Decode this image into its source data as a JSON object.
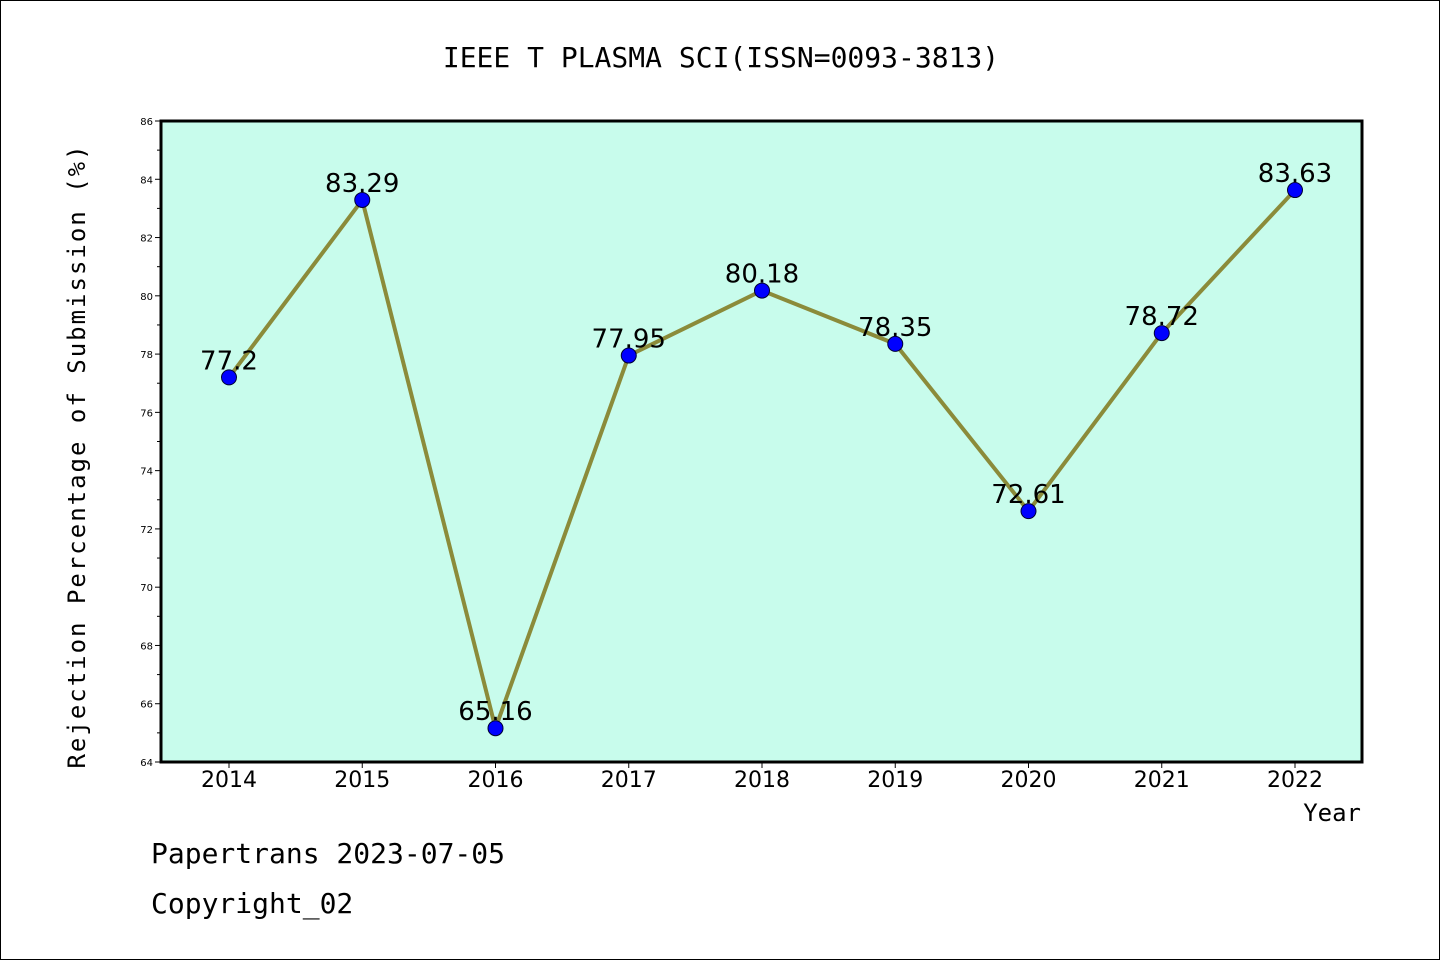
{
  "chart_data": {
    "type": "line",
    "title": "IEEE T PLASMA SCI(ISSN=0093-3813)",
    "xlabel": "Year",
    "ylabel": "Rejection Percentage of Submission (%)",
    "categories": [
      "2014",
      "2015",
      "2016",
      "2017",
      "2018",
      "2019",
      "2020",
      "2021",
      "2022"
    ],
    "values": [
      77.2,
      83.29,
      65.16,
      77.95,
      80.18,
      78.35,
      72.61,
      78.72,
      83.63
    ],
    "data_labels": [
      "77.2",
      "83.29",
      "65.16",
      "77.95",
      "80.18",
      "78.35",
      "72.61",
      "78.72",
      "83.63"
    ],
    "y_ticks": [
      "64",
      "66",
      "68",
      "70",
      "72",
      "74",
      "76",
      "78",
      "80",
      "82",
      "84",
      "86"
    ],
    "ylim": [
      64,
      86
    ],
    "grid": false,
    "colors": {
      "plot_background": "#c8fcec",
      "line": "#8b8b3a",
      "marker": "#0000ff"
    }
  },
  "footer": {
    "line1": "Papertrans 2023-07-05",
    "line2": "Copyright_02"
  }
}
